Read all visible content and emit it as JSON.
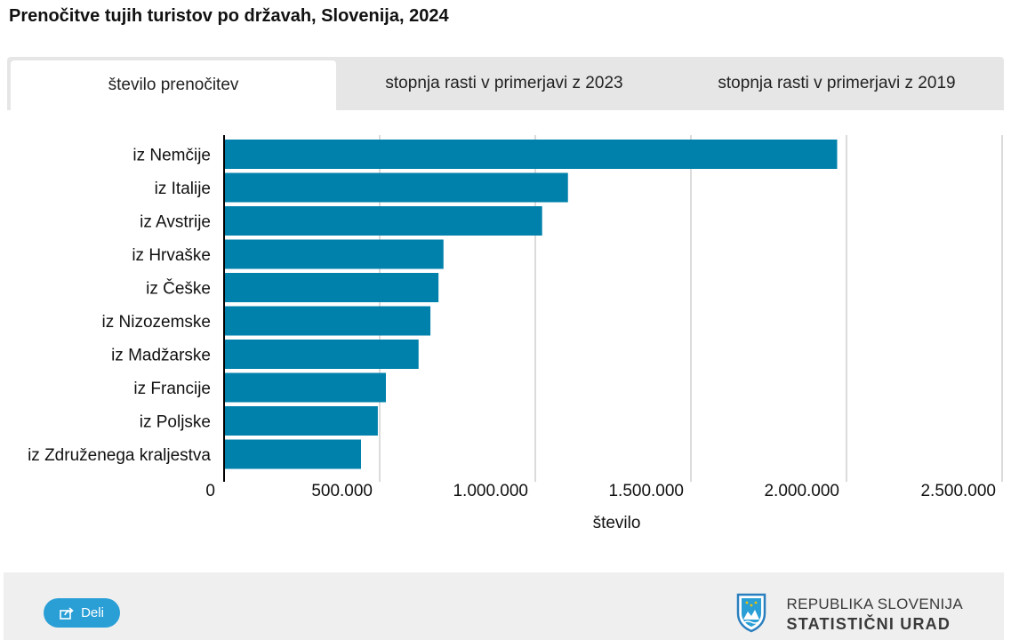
{
  "title": "Prenočitve tujih turistov po državah, Slovenija, 2024",
  "tabs": [
    {
      "label": "število prenočitev",
      "active": true
    },
    {
      "label": "stopnja rasti v primerjavi z 2023",
      "active": false
    },
    {
      "label": "stopnja rasti v primerjavi z 2019",
      "active": false
    }
  ],
  "chart_data": {
    "type": "bar",
    "orientation": "horizontal",
    "categories": [
      "iz Nemčije",
      "iz Italije",
      "iz Avstrije",
      "iz Hrvaške",
      "iz Češke",
      "iz Nizozemske",
      "iz Madžarske",
      "iz Francije",
      "iz Poljske",
      "iz Združenega kraljestva"
    ],
    "values": [
      1970000,
      1105000,
      1022000,
      705000,
      689000,
      663000,
      625000,
      520000,
      494000,
      440000
    ],
    "xlabel": "število",
    "ylabel": "",
    "xlim": [
      0,
      2500000
    ],
    "ticks": [
      0,
      500000,
      1000000,
      1500000,
      2000000,
      2500000
    ],
    "tick_labels": [
      "0",
      "500.000",
      "1.000.000",
      "1.500.000",
      "2.000.000",
      "2.500.000"
    ],
    "bar_color": "#0081ab",
    "grid": true
  },
  "footer": {
    "share_label": "Deli",
    "share_icon": "share-icon",
    "logo_line1": "REPUBLIKA SLOVENIJA",
    "logo_line2": "STATISTIČNI URAD",
    "logo_icon": "coat-of-arms-icon"
  }
}
